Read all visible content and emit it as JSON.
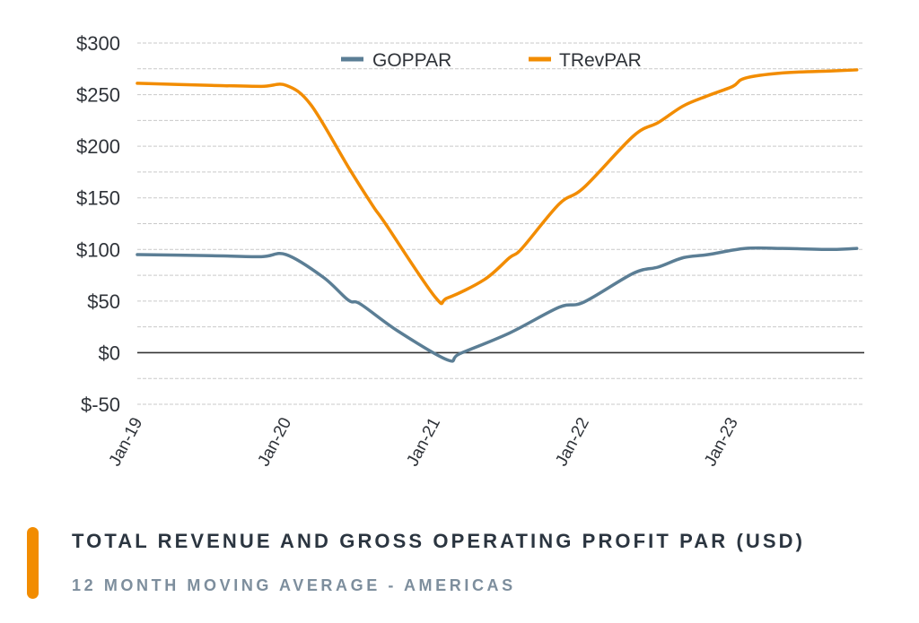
{
  "chart_data": {
    "type": "line",
    "title": "TOTAL REVENUE AND GROSS OPERATING PROFIT PAR (USD)",
    "subtitle": "12 MONTH MOVING AVERAGE - AMERICAS",
    "xlabel": "",
    "ylabel": "",
    "ylim": [
      -50,
      300
    ],
    "xlim": [
      "2019-01",
      "2023-11"
    ],
    "y_ticks": [
      "$300",
      "$250",
      "$200",
      "$150",
      "$100",
      "$50",
      "$0",
      "$-50"
    ],
    "y_tick_values": [
      300,
      250,
      200,
      150,
      100,
      50,
      0,
      -50
    ],
    "x_ticks": [
      "Jan-19",
      "Jan-20",
      "Jan-21",
      "Jan-22",
      "Jan-23"
    ],
    "x_tick_values": [
      "2019-01",
      "2020-01",
      "2021-01",
      "2022-01",
      "2023-01"
    ],
    "grid": "horizontal dashed every 25",
    "zero_line": true,
    "legend_position": "top",
    "series": [
      {
        "name": "GOPPAR",
        "color": "#5B7E95",
        "points": [
          [
            "2019-01",
            95
          ],
          [
            "2019-07",
            94
          ],
          [
            "2019-11",
            93
          ],
          [
            "2020-01",
            95
          ],
          [
            "2020-04",
            73
          ],
          [
            "2020-06",
            51
          ],
          [
            "2020-07",
            47
          ],
          [
            "2020-10",
            21
          ],
          [
            "2021-02",
            -7
          ],
          [
            "2021-03",
            -1
          ],
          [
            "2021-07",
            19
          ],
          [
            "2021-11",
            44
          ],
          [
            "2022-01",
            49
          ],
          [
            "2022-05",
            77
          ],
          [
            "2022-07",
            83
          ],
          [
            "2022-09",
            92
          ],
          [
            "2022-11",
            95
          ],
          [
            "2023-02",
            101
          ],
          [
            "2023-05",
            101
          ],
          [
            "2023-09",
            100
          ],
          [
            "2023-11",
            101
          ]
        ]
      },
      {
        "name": "TRevPAR",
        "color": "#F28C00",
        "points": [
          [
            "2019-01",
            261
          ],
          [
            "2019-07",
            259
          ],
          [
            "2019-11",
            258
          ],
          [
            "2020-01",
            259
          ],
          [
            "2020-03",
            240
          ],
          [
            "2020-06",
            180
          ],
          [
            "2020-08",
            142
          ],
          [
            "2020-09",
            125
          ],
          [
            "2021-01",
            54
          ],
          [
            "2021-02",
            53
          ],
          [
            "2021-05",
            71
          ],
          [
            "2021-07",
            92
          ],
          [
            "2021-08",
            101
          ],
          [
            "2021-11",
            144
          ],
          [
            "2022-01",
            160
          ],
          [
            "2022-05",
            210
          ],
          [
            "2022-07",
            223
          ],
          [
            "2022-09",
            239
          ],
          [
            "2022-11",
            249
          ],
          [
            "2023-01",
            258
          ],
          [
            "2023-02",
            266
          ],
          [
            "2023-05",
            271
          ],
          [
            "2023-09",
            273
          ],
          [
            "2023-11",
            274
          ]
        ]
      }
    ]
  }
}
